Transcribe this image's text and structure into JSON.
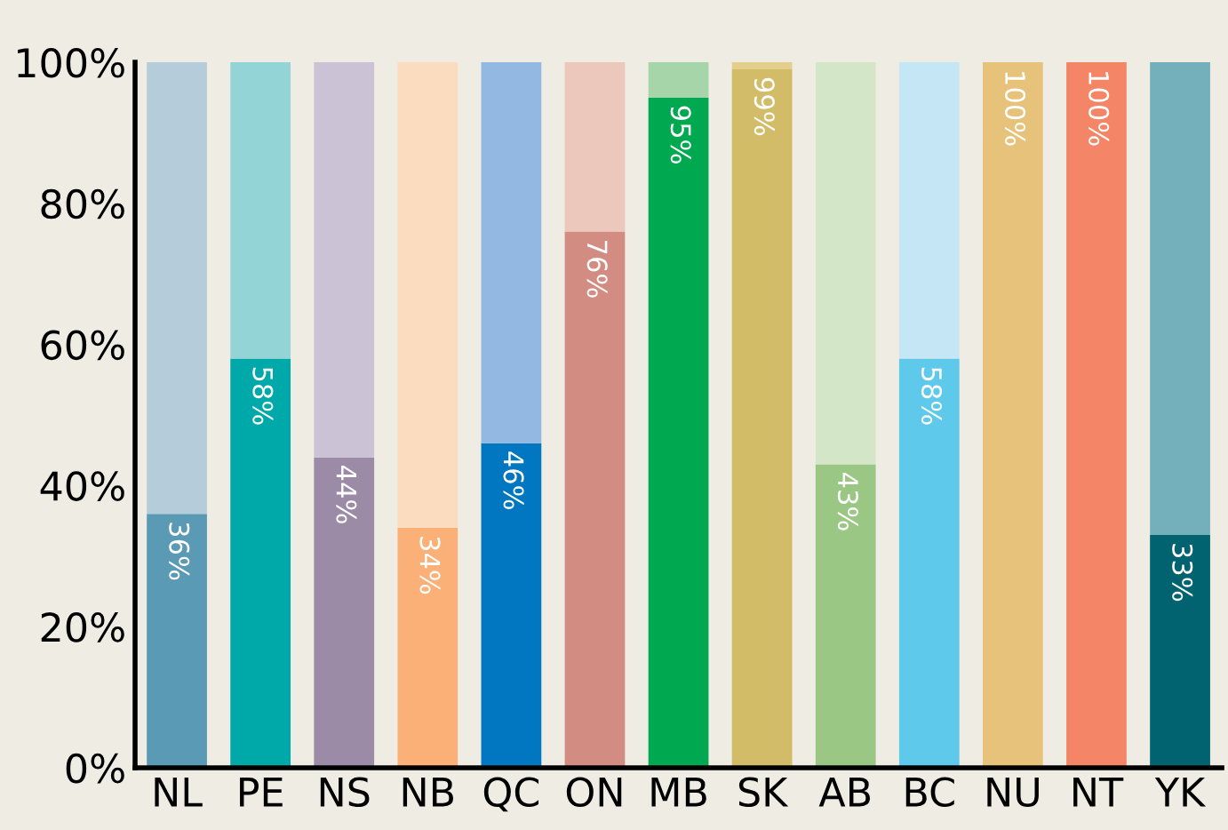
{
  "chart_data": {
    "type": "bar",
    "stacked": true,
    "categories": [
      "NL",
      "PE",
      "NS",
      "NB",
      "QC",
      "ON",
      "MB",
      "SK",
      "AB",
      "BC",
      "NU",
      "NT",
      "YK"
    ],
    "series": [
      {
        "values": [
          36,
          58,
          44,
          34,
          46,
          76,
          95,
          99,
          43,
          58,
          100,
          100,
          33
        ],
        "colors": [
          "#5b9ab5",
          "#00a9a9",
          "#9b8ba6",
          "#fbb077",
          "#0077c0",
          "#d38c82",
          "#00a850",
          "#d2bc68",
          "#9bc784",
          "#5fc9ec",
          "#e6c27a",
          "#f48566",
          "#00636f"
        ],
        "value_labels": [
          "36%",
          "58%",
          "44%",
          "34%",
          "46%",
          "76%",
          "95%",
          "99%",
          "43%",
          "58%",
          "100%",
          "100%",
          "33%"
        ]
      },
      {
        "values": [
          64,
          42,
          56,
          66,
          54,
          24,
          5,
          1,
          57,
          42,
          0,
          0,
          67
        ],
        "colors": [
          "#b5cddb",
          "#93d5d7",
          "#cbc3d5",
          "#fcdcbf",
          "#93b8e2",
          "#ebc7bc",
          "#a6d5a9",
          "#e3cf8a",
          "#d4e6c8",
          "#c5e6f5",
          "#e6c27a",
          "#f48566",
          "#73b0bc"
        ]
      }
    ],
    "ylim": [
      0,
      100
    ],
    "yticks": [
      {
        "value": 0,
        "label": "0%"
      },
      {
        "value": 20,
        "label": "20%"
      },
      {
        "value": 40,
        "label": "40%"
      },
      {
        "value": 60,
        "label": "60%"
      },
      {
        "value": 80,
        "label": "80%"
      },
      {
        "value": 100,
        "label": "100%"
      }
    ],
    "grid": false
  }
}
